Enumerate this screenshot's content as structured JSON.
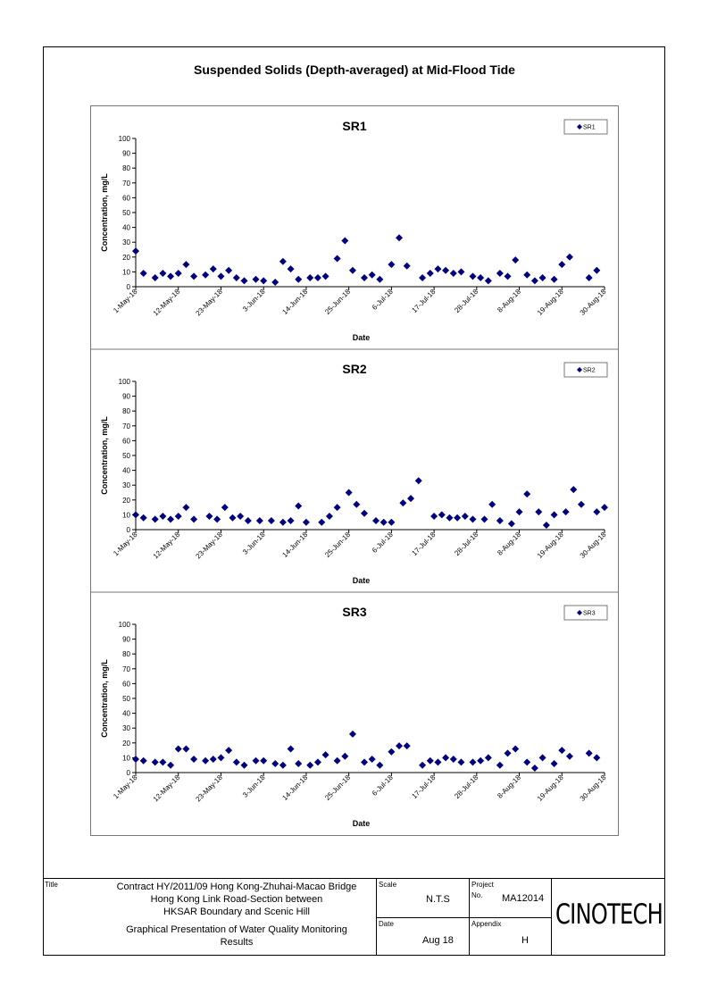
{
  "page": {
    "main_title": "Suspended Solids (Depth-averaged) at Mid-Flood Tide"
  },
  "chart_data": [
    {
      "type": "scatter",
      "title": "SR1",
      "xlabel": "Date",
      "ylabel": "Concentration, mg/L",
      "ylim": [
        0,
        100
      ],
      "yticks": [
        0,
        10,
        20,
        30,
        40,
        50,
        60,
        70,
        80,
        90,
        100
      ],
      "xlim": [
        "2018-05-01",
        "2018-08-30"
      ],
      "xticks": [
        "1-May-18",
        "12-May-18",
        "23-May-18",
        "3-Jun-18",
        "14-Jun-18",
        "25-Jun-18",
        "6-Jul-18",
        "17-Jul-18",
        "28-Jul-18",
        "8-Aug-18",
        "19-Aug-18",
        "30-Aug-18"
      ],
      "legend": "top-right",
      "series": [
        {
          "name": "SR1",
          "color": "#000080",
          "points": [
            [
              "2018-05-01",
              24
            ],
            [
              "2018-05-03",
              9
            ],
            [
              "2018-05-06",
              6
            ],
            [
              "2018-05-08",
              9
            ],
            [
              "2018-05-10",
              7
            ],
            [
              "2018-05-12",
              9
            ],
            [
              "2018-05-14",
              15
            ],
            [
              "2018-05-16",
              7
            ],
            [
              "2018-05-19",
              8
            ],
            [
              "2018-05-21",
              12
            ],
            [
              "2018-05-23",
              7
            ],
            [
              "2018-05-25",
              11
            ],
            [
              "2018-05-27",
              6
            ],
            [
              "2018-05-29",
              4
            ],
            [
              "2018-06-01",
              5
            ],
            [
              "2018-06-03",
              4
            ],
            [
              "2018-06-06",
              3
            ],
            [
              "2018-06-08",
              17
            ],
            [
              "2018-06-10",
              12
            ],
            [
              "2018-06-12",
              5
            ],
            [
              "2018-06-15",
              6
            ],
            [
              "2018-06-17",
              6
            ],
            [
              "2018-06-19",
              7
            ],
            [
              "2018-06-22",
              19
            ],
            [
              "2018-06-24",
              31
            ],
            [
              "2018-06-26",
              11
            ],
            [
              "2018-06-29",
              6
            ],
            [
              "2018-07-01",
              8
            ],
            [
              "2018-07-03",
              5
            ],
            [
              "2018-07-06",
              15
            ],
            [
              "2018-07-08",
              33
            ],
            [
              "2018-07-10",
              14
            ],
            [
              "2018-07-14",
              6
            ],
            [
              "2018-07-16",
              9
            ],
            [
              "2018-07-18",
              12
            ],
            [
              "2018-07-20",
              11
            ],
            [
              "2018-07-22",
              9
            ],
            [
              "2018-07-24",
              10
            ],
            [
              "2018-07-27",
              7
            ],
            [
              "2018-07-29",
              6
            ],
            [
              "2018-07-31",
              4
            ],
            [
              "2018-08-03",
              9
            ],
            [
              "2018-08-05",
              7
            ],
            [
              "2018-08-07",
              18
            ],
            [
              "2018-08-10",
              8
            ],
            [
              "2018-08-12",
              4
            ],
            [
              "2018-08-14",
              6
            ],
            [
              "2018-08-17",
              5
            ],
            [
              "2018-08-19",
              15
            ],
            [
              "2018-08-21",
              20
            ],
            [
              "2018-08-26",
              6
            ],
            [
              "2018-08-28",
              11
            ]
          ]
        }
      ]
    },
    {
      "type": "scatter",
      "title": "SR2",
      "xlabel": "Date",
      "ylabel": "Concentration, mg/L",
      "ylim": [
        0,
        100
      ],
      "yticks": [
        0,
        10,
        20,
        30,
        40,
        50,
        60,
        70,
        80,
        90,
        100
      ],
      "xlim": [
        "2018-05-01",
        "2018-08-30"
      ],
      "xticks": [
        "1-May-18",
        "12-May-18",
        "23-May-18",
        "3-Jun-18",
        "14-Jun-18",
        "25-Jun-18",
        "6-Jul-18",
        "17-Jul-18",
        "28-Jul-18",
        "8-Aug-18",
        "19-Aug-18",
        "30-Aug-18"
      ],
      "legend": "top-right",
      "series": [
        {
          "name": "SR2",
          "color": "#000080",
          "points": [
            [
              "2018-05-01",
              10
            ],
            [
              "2018-05-03",
              8
            ],
            [
              "2018-05-06",
              7
            ],
            [
              "2018-05-08",
              9
            ],
            [
              "2018-05-10",
              7
            ],
            [
              "2018-05-12",
              9
            ],
            [
              "2018-05-14",
              15
            ],
            [
              "2018-05-16",
              7
            ],
            [
              "2018-05-20",
              9
            ],
            [
              "2018-05-22",
              7
            ],
            [
              "2018-05-24",
              15
            ],
            [
              "2018-05-26",
              8
            ],
            [
              "2018-05-28",
              9
            ],
            [
              "2018-05-30",
              6
            ],
            [
              "2018-06-02",
              6
            ],
            [
              "2018-06-05",
              6
            ],
            [
              "2018-06-08",
              5
            ],
            [
              "2018-06-10",
              6
            ],
            [
              "2018-06-12",
              16
            ],
            [
              "2018-06-14",
              5
            ],
            [
              "2018-06-18",
              5
            ],
            [
              "2018-06-20",
              9
            ],
            [
              "2018-06-22",
              15
            ],
            [
              "2018-06-25",
              25
            ],
            [
              "2018-06-27",
              17
            ],
            [
              "2018-06-29",
              11
            ],
            [
              "2018-07-02",
              6
            ],
            [
              "2018-07-04",
              5
            ],
            [
              "2018-07-06",
              5
            ],
            [
              "2018-07-09",
              18
            ],
            [
              "2018-07-11",
              21
            ],
            [
              "2018-07-13",
              33
            ],
            [
              "2018-07-17",
              9
            ],
            [
              "2018-07-19",
              10
            ],
            [
              "2018-07-21",
              8
            ],
            [
              "2018-07-23",
              8
            ],
            [
              "2018-07-25",
              9
            ],
            [
              "2018-07-27",
              7
            ],
            [
              "2018-07-30",
              7
            ],
            [
              "2018-08-01",
              17
            ],
            [
              "2018-08-03",
              6
            ],
            [
              "2018-08-06",
              4
            ],
            [
              "2018-08-08",
              12
            ],
            [
              "2018-08-10",
              24
            ],
            [
              "2018-08-13",
              12
            ],
            [
              "2018-08-15",
              3
            ],
            [
              "2018-08-17",
              10
            ],
            [
              "2018-08-20",
              12
            ],
            [
              "2018-08-22",
              27
            ],
            [
              "2018-08-24",
              17
            ],
            [
              "2018-08-28",
              12
            ],
            [
              "2018-08-30",
              15
            ]
          ]
        }
      ]
    },
    {
      "type": "scatter",
      "title": "SR3",
      "xlabel": "Date",
      "ylabel": "Concentration, mg/L",
      "ylim": [
        0,
        100
      ],
      "yticks": [
        0,
        10,
        20,
        30,
        40,
        50,
        60,
        70,
        80,
        90,
        100
      ],
      "xlim": [
        "2018-05-01",
        "2018-08-30"
      ],
      "xticks": [
        "1-May-18",
        "12-May-18",
        "23-May-18",
        "3-Jun-18",
        "14-Jun-18",
        "25-Jun-18",
        "6-Jul-18",
        "17-Jul-18",
        "28-Jul-18",
        "8-Aug-18",
        "19-Aug-18",
        "30-Aug-18"
      ],
      "legend": "top-right",
      "series": [
        {
          "name": "SR3",
          "color": "#000080",
          "points": [
            [
              "2018-05-01",
              9
            ],
            [
              "2018-05-03",
              8
            ],
            [
              "2018-05-06",
              7
            ],
            [
              "2018-05-08",
              7
            ],
            [
              "2018-05-10",
              5
            ],
            [
              "2018-05-12",
              16
            ],
            [
              "2018-05-14",
              16
            ],
            [
              "2018-05-16",
              9
            ],
            [
              "2018-05-19",
              8
            ],
            [
              "2018-05-21",
              9
            ],
            [
              "2018-05-23",
              10
            ],
            [
              "2018-05-25",
              15
            ],
            [
              "2018-05-27",
              7
            ],
            [
              "2018-05-29",
              5
            ],
            [
              "2018-06-01",
              8
            ],
            [
              "2018-06-03",
              8
            ],
            [
              "2018-06-06",
              6
            ],
            [
              "2018-06-08",
              5
            ],
            [
              "2018-06-10",
              16
            ],
            [
              "2018-06-12",
              6
            ],
            [
              "2018-06-15",
              5
            ],
            [
              "2018-06-17",
              7
            ],
            [
              "2018-06-19",
              12
            ],
            [
              "2018-06-22",
              8
            ],
            [
              "2018-06-24",
              11
            ],
            [
              "2018-06-26",
              26
            ],
            [
              "2018-06-29",
              7
            ],
            [
              "2018-07-01",
              9
            ],
            [
              "2018-07-03",
              5
            ],
            [
              "2018-07-06",
              14
            ],
            [
              "2018-07-08",
              18
            ],
            [
              "2018-07-10",
              18
            ],
            [
              "2018-07-14",
              5
            ],
            [
              "2018-07-16",
              8
            ],
            [
              "2018-07-18",
              7
            ],
            [
              "2018-07-20",
              10
            ],
            [
              "2018-07-22",
              9
            ],
            [
              "2018-07-24",
              7
            ],
            [
              "2018-07-27",
              7
            ],
            [
              "2018-07-29",
              8
            ],
            [
              "2018-07-31",
              10
            ],
            [
              "2018-08-03",
              5
            ],
            [
              "2018-08-05",
              13
            ],
            [
              "2018-08-07",
              16
            ],
            [
              "2018-08-10",
              7
            ],
            [
              "2018-08-12",
              3
            ],
            [
              "2018-08-14",
              10
            ],
            [
              "2018-08-17",
              6
            ],
            [
              "2018-08-19",
              15
            ],
            [
              "2018-08-21",
              11
            ],
            [
              "2018-08-26",
              13
            ],
            [
              "2018-08-28",
              10
            ]
          ]
        }
      ]
    }
  ],
  "title_block": {
    "title_label": "Title",
    "title_lines": [
      "Contract HY/2011/09 Hong Kong-Zhuhai-Macao Bridge",
      "Hong Kong Link Road-Section between",
      "HKSAR Boundary and Scenic Hill"
    ],
    "desc_lines": [
      "Graphical Presentation of Water Quality Monitoring",
      "Results"
    ],
    "scale_label": "Scale",
    "scale_value": "N.T.S",
    "date_label": "Date",
    "date_value": "Aug 18",
    "project_label": "Project",
    "no_label": "No.",
    "project_no": "MA12014",
    "appendix_label": "Appendix",
    "appendix_value": "H",
    "logo": "CINOTECH"
  }
}
